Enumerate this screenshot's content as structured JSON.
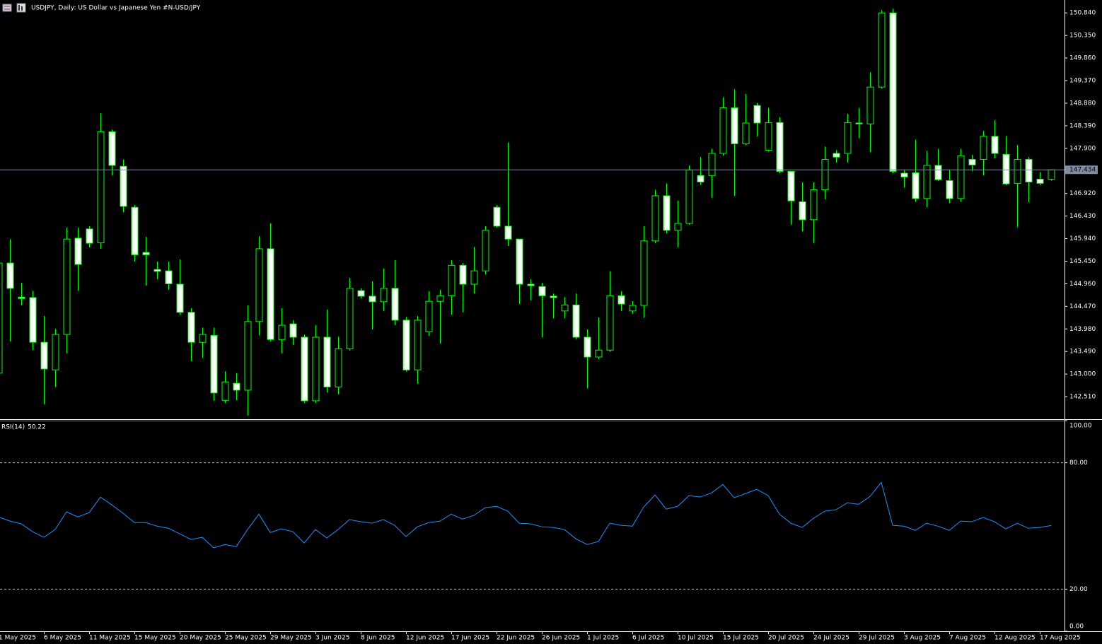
{
  "chart_data": [
    {
      "type": "candlestick",
      "title": "USDJPY, Daily:  US Dollar vs  Japanese Yen #N-USD/JPY",
      "categories": [
        "1 May 2025",
        null,
        null,
        null,
        "6 May 2025",
        null,
        null,
        null,
        "11 May 2025",
        null,
        null,
        null,
        "15 May 2025",
        null,
        null,
        null,
        "20 May 2025",
        null,
        null,
        null,
        "25 May 2025",
        null,
        null,
        null,
        "29 May 2025",
        null,
        null,
        null,
        "3 Jun 2025",
        null,
        null,
        null,
        "8 Jun 2025",
        null,
        null,
        null,
        "12 Jun 2025",
        null,
        null,
        null,
        "17 Jun 2025",
        null,
        null,
        null,
        "22 Jun 2025",
        null,
        null,
        null,
        "26 Jun 2025",
        null,
        null,
        null,
        "1 Jul 2025",
        null,
        null,
        null,
        "6 Jul 2025",
        null,
        null,
        null,
        "10 Jul 2025",
        null,
        null,
        null,
        "15 Jul 2025",
        null,
        null,
        null,
        "20 Jul 2025",
        null,
        null,
        null,
        "24 Jul 2025",
        null,
        null,
        null,
        "29 Jul 2025",
        null,
        null,
        null,
        "3 Aug 2025",
        null,
        null,
        null,
        "7 Aug 2025",
        null,
        null,
        null,
        "12 Aug 2025",
        null,
        null,
        null,
        "17 Aug 2025",
        null
      ],
      "open": [
        143.02,
        145.41,
        144.67,
        144.66,
        143.69,
        143.09,
        143.86,
        145.95,
        146.15,
        145.85,
        148.26,
        147.51,
        146.62,
        145.64,
        145.27,
        145.24,
        144.95,
        144.34,
        143.69,
        143.84,
        142.43,
        142.8,
        142.65,
        144.14,
        145.72,
        143.75,
        144.09,
        143.8,
        142.42,
        143.8,
        142.72,
        143.55,
        144.81,
        144.69,
        144.57,
        144.86,
        144.17,
        143.09,
        143.92,
        144.58,
        144.7,
        145.36,
        144.95,
        145.24,
        146.62,
        146.21,
        145.93,
        144.95,
        144.9,
        144.69,
        144.37,
        144.5,
        143.8,
        143.37,
        143.52,
        144.7,
        144.37,
        144.49,
        145.89,
        146.87,
        146.12,
        146.27,
        147.31,
        147.31,
        147.79,
        148.78,
        148.0,
        148.83,
        147.86,
        148.46,
        147.4,
        146.74,
        146.35,
        147.0,
        147.79,
        147.79,
        148.45,
        148.43,
        149.23,
        150.84,
        147.36,
        147.37,
        146.81,
        147.53,
        147.2,
        146.81,
        147.66,
        147.66,
        148.16,
        147.77,
        147.14,
        147.66,
        147.23,
        147.23
      ],
      "high": [
        145.52,
        145.93,
        144.98,
        144.81,
        144.26,
        143.98,
        146.18,
        146.18,
        146.21,
        148.66,
        148.31,
        147.66,
        146.67,
        145.98,
        145.44,
        145.44,
        145.49,
        144.43,
        144.01,
        144.01,
        143.06,
        143.02,
        144.49,
        145.99,
        146.27,
        144.43,
        144.17,
        143.86,
        144.06,
        144.4,
        143.81,
        145.09,
        144.86,
        145.01,
        145.29,
        145.47,
        144.24,
        144.26,
        144.8,
        144.83,
        145.47,
        145.41,
        145.76,
        146.21,
        146.67,
        148.03,
        145.93,
        145.06,
        144.98,
        144.75,
        144.67,
        144.75,
        143.97,
        144.23,
        145.23,
        144.8,
        144.58,
        146.21,
        147.0,
        147.14,
        146.77,
        147.53,
        147.71,
        147.89,
        149.01,
        149.18,
        149.08,
        148.89,
        148.78,
        148.58,
        147.4,
        147.16,
        147.16,
        147.94,
        147.86,
        148.65,
        148.78,
        149.55,
        150.9,
        150.93,
        147.43,
        148.09,
        147.85,
        147.89,
        147.43,
        147.89,
        147.76,
        148.28,
        148.51,
        148.17,
        147.97,
        147.71,
        147.39,
        147.43
      ],
      "low": [
        142.99,
        143.71,
        144.49,
        143.52,
        142.34,
        142.72,
        143.45,
        144.81,
        145.75,
        145.72,
        147.31,
        146.51,
        145.44,
        144.92,
        145.06,
        144.83,
        144.29,
        143.28,
        143.35,
        142.42,
        142.37,
        142.43,
        142.1,
        143.84,
        143.71,
        143.45,
        143.63,
        142.37,
        142.37,
        142.6,
        142.56,
        143.51,
        144.64,
        143.97,
        144.37,
        144.06,
        143.06,
        142.79,
        143.83,
        143.66,
        144.29,
        144.34,
        144.75,
        145.16,
        146.18,
        145.78,
        144.52,
        144.6,
        143.8,
        144.21,
        144.21,
        143.75,
        142.69,
        143.32,
        143.49,
        144.37,
        144.31,
        144.23,
        145.84,
        146.05,
        145.75,
        146.24,
        147.11,
        146.82,
        147.74,
        146.87,
        147.97,
        148.16,
        147.83,
        147.36,
        146.24,
        146.1,
        145.84,
        146.79,
        147.59,
        147.59,
        148.12,
        147.82,
        149.2,
        147.36,
        147.05,
        146.74,
        146.62,
        147.19,
        146.71,
        146.74,
        147.4,
        147.31,
        147.68,
        147.1,
        146.19,
        146.73,
        147.1,
        147.2
      ],
      "close": [
        145.41,
        144.86,
        144.64,
        143.69,
        143.11,
        143.86,
        145.93,
        145.38,
        145.84,
        148.26,
        147.53,
        146.64,
        145.59,
        145.59,
        145.23,
        144.96,
        144.34,
        143.69,
        143.86,
        142.59,
        142.83,
        142.65,
        144.14,
        145.72,
        143.75,
        144.06,
        143.8,
        142.42,
        143.8,
        142.72,
        143.55,
        144.86,
        144.69,
        144.57,
        144.86,
        144.17,
        143.09,
        144.17,
        144.58,
        144.7,
        145.36,
        144.95,
        145.24,
        146.12,
        146.21,
        145.93,
        144.95,
        144.92,
        144.7,
        144.66,
        144.5,
        143.8,
        143.37,
        143.52,
        144.7,
        144.52,
        144.49,
        145.89,
        146.87,
        146.12,
        146.27,
        147.43,
        147.17,
        147.79,
        148.78,
        148.0,
        148.45,
        148.45,
        148.46,
        147.4,
        146.76,
        146.35,
        147.0,
        147.66,
        147.71,
        148.46,
        148.43,
        149.23,
        150.84,
        147.4,
        147.28,
        146.81,
        147.53,
        147.22,
        146.81,
        147.74,
        147.54,
        148.16,
        147.79,
        147.13,
        147.66,
        147.17,
        147.14,
        147.434
      ],
      "up_color": "#000000",
      "down_color": "#ffffff",
      "wick_color": "#00ff00",
      "ylim": [
        142.02,
        151.12
      ],
      "yticks": [
        {
          "value": 150.84,
          "label": "150.840"
        },
        {
          "value": 150.35,
          "label": "150.350"
        },
        {
          "value": 149.86,
          "label": "149.860"
        },
        {
          "value": 149.37,
          "label": "149.370"
        },
        {
          "value": 148.88,
          "label": "148.880"
        },
        {
          "value": 148.39,
          "label": "148.390"
        },
        {
          "value": 147.9,
          "label": "147.900"
        },
        {
          "value": 146.92,
          "label": "146.920"
        },
        {
          "value": 146.43,
          "label": "146.430"
        },
        {
          "value": 145.94,
          "label": "145.940"
        },
        {
          "value": 145.45,
          "label": "145.450"
        },
        {
          "value": 144.96,
          "label": "144.960"
        },
        {
          "value": 144.47,
          "label": "144.470"
        },
        {
          "value": 143.98,
          "label": "143.980"
        },
        {
          "value": 143.49,
          "label": "143.490"
        },
        {
          "value": 143.0,
          "label": "143.000"
        },
        {
          "value": 142.51,
          "label": "142.510"
        }
      ],
      "current_price": {
        "value": 147.434,
        "label": "147.434"
      },
      "current_price_color": "#7f8ca0"
    },
    {
      "type": "line",
      "name": "RSI(14)",
      "color": "#1e90ff",
      "values": [
        54.3,
        52.3,
        51.0,
        47.3,
        44.6,
        48.3,
        56.7,
        54.3,
        56.3,
        63.7,
        60.0,
        56.0,
        51.6,
        51.6,
        49.9,
        48.9,
        46.3,
        43.6,
        44.6,
        39.6,
        41.2,
        40.2,
        48.3,
        55.6,
        46.9,
        48.6,
        47.3,
        41.9,
        48.3,
        44.3,
        48.3,
        53.0,
        52.0,
        51.3,
        53.0,
        50.3,
        44.9,
        49.6,
        51.6,
        52.3,
        55.6,
        53.3,
        55.0,
        58.7,
        59.3,
        57.0,
        51.3,
        51.0,
        49.6,
        49.3,
        48.3,
        43.9,
        41.2,
        42.6,
        51.3,
        50.3,
        49.9,
        59.0,
        64.7,
        58.0,
        59.3,
        64.4,
        63.7,
        65.7,
        69.7,
        63.4,
        65.4,
        67.4,
        64.4,
        55.6,
        51.3,
        49.3,
        53.6,
        57.0,
        57.7,
        61.0,
        60.3,
        64.0,
        70.7,
        50.3,
        49.9,
        47.9,
        51.3,
        49.9,
        47.9,
        52.3,
        52.0,
        54.0,
        52.0,
        48.6,
        51.3,
        48.9,
        49.3,
        50.22
      ],
      "ylim": [
        0,
        100
      ],
      "yticks": [
        {
          "value": 100,
          "label": "100.00"
        },
        {
          "value": 80,
          "label": "80.00"
        },
        {
          "value": 20,
          "label": "20.00"
        },
        {
          "value": 0,
          "label": "0.00"
        }
      ]
    }
  ]
}
